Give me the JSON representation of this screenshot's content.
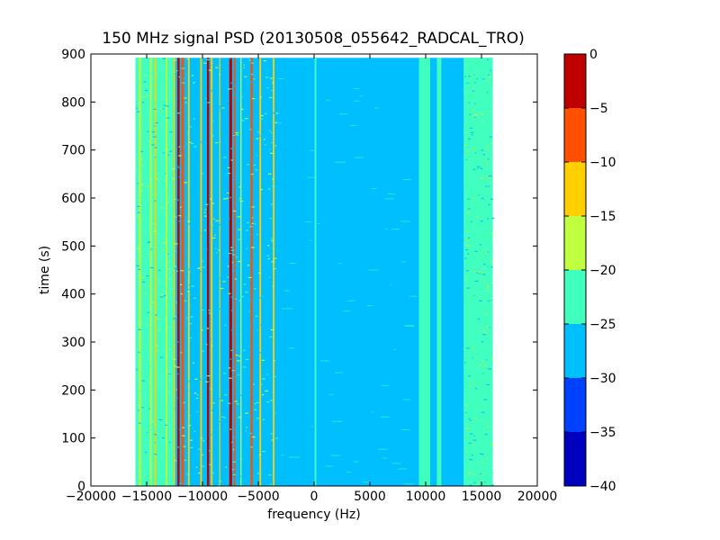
{
  "chart_data": {
    "type": "heatmap",
    "title": "150 MHz signal PSD (20130508_055642_RADCAL_TRO)",
    "xlabel": "frequency (Hz)",
    "ylabel": "time (s)",
    "xlim": [
      -20000,
      20000
    ],
    "ylim": [
      0,
      900
    ],
    "x_ticks": [
      "−20000",
      "−15000",
      "−10000",
      "−5000",
      "0",
      "5000",
      "10000",
      "15000",
      "20000"
    ],
    "y_ticks": [
      "0",
      "100",
      "200",
      "300",
      "400",
      "500",
      "600",
      "700",
      "800",
      "900"
    ],
    "data_extent": {
      "x": [
        -16000,
        16000
      ],
      "y": [
        0,
        892
      ]
    },
    "colorbar": {
      "min": -40,
      "max": 0,
      "ticks": [
        "−40",
        "−35",
        "−30",
        "−25",
        "−20",
        "−15",
        "−10",
        "−5",
        "0"
      ],
      "bins": [
        {
          "from": -40,
          "to": -35,
          "color": "#0000bf"
        },
        {
          "from": -35,
          "to": -30,
          "color": "#0040ff"
        },
        {
          "from": -30,
          "to": -25,
          "color": "#00bfff"
        },
        {
          "from": -25,
          "to": -20,
          "color": "#40ffbf"
        },
        {
          "from": -20,
          "to": -15,
          "color": "#bfff40"
        },
        {
          "from": -15,
          "to": -10,
          "color": "#ffcf00"
        },
        {
          "from": -10,
          "to": -5,
          "color": "#ff5000"
        },
        {
          "from": -5,
          "to": 0,
          "color": "#bf0000"
        }
      ]
    },
    "background_level": {
      "color": "#00bfff",
      "x_range": [
        -3300,
        9400
      ]
    },
    "spectral_lines": [
      {
        "x_range": [
          -16000,
          -12600
        ],
        "level": "-25..-20 (mixed)",
        "color": "#40ffbf"
      },
      {
        "x_range": [
          -15700,
          -15500
        ],
        "level": "-20..-15",
        "color": "#bfff40"
      },
      {
        "x_range": [
          -14700,
          -14550
        ],
        "level": "-20..-15",
        "color": "#bfff40"
      },
      {
        "x_range": [
          -14300,
          -14150
        ],
        "level": "-15..-10",
        "color": "#ffcf00"
      },
      {
        "x_range": [
          -13300,
          -13150
        ],
        "level": "-20..-15",
        "color": "#bfff40"
      },
      {
        "x_range": [
          -12600,
          -12450
        ],
        "level": "-15..-10",
        "color": "#ffcf00"
      },
      {
        "x_range": [
          -12250,
          -12050
        ],
        "level": "-5..0",
        "color": "#bf0000"
      },
      {
        "x_range": [
          -11900,
          -11650
        ],
        "level": "-10..-5",
        "color": "#ff5000"
      },
      {
        "x_range": [
          -11300,
          -11150
        ],
        "level": "-15..-10",
        "color": "#ffcf00"
      },
      {
        "x_range": [
          -10200,
          -10050
        ],
        "level": "-15..-10",
        "color": "#ffcf00"
      },
      {
        "x_range": [
          -9600,
          -9400
        ],
        "level": "-5..0",
        "color": "#bf0000"
      },
      {
        "x_range": [
          -9250,
          -9100
        ],
        "level": "-15..-10",
        "color": "#ffcf00"
      },
      {
        "x_range": [
          -8500,
          -8400
        ],
        "level": "-15..-10",
        "color": "#ffcf00"
      },
      {
        "x_range": [
          -7600,
          -7350
        ],
        "level": "-5..0",
        "color": "#bf0000"
      },
      {
        "x_range": [
          -7200,
          -7050
        ],
        "level": "-10..-5",
        "color": "#ff5000"
      },
      {
        "x_range": [
          -6600,
          -6500
        ],
        "level": "-20..-15",
        "color": "#bfff40"
      },
      {
        "x_range": [
          -5700,
          -5500
        ],
        "level": "-10..-5",
        "color": "#ff5000"
      },
      {
        "x_range": [
          -4900,
          -4750
        ],
        "level": "-15..-10",
        "color": "#ffcf00"
      },
      {
        "x_range": [
          -3700,
          -3550
        ],
        "level": "-15..-10",
        "color": "#ffcf00"
      },
      {
        "x_range": [
          50,
          200
        ],
        "level": "-25..-20",
        "color": "#40ffbf"
      },
      {
        "x_range": [
          9400,
          10400
        ],
        "level": "-25..-20",
        "color": "#40ffbf"
      },
      {
        "x_range": [
          11000,
          11400
        ],
        "level": "-25..-20",
        "color": "#40ffbf"
      },
      {
        "x_range": [
          13400,
          16000
        ],
        "level": "-25..-20",
        "color": "#40ffbf"
      }
    ]
  }
}
